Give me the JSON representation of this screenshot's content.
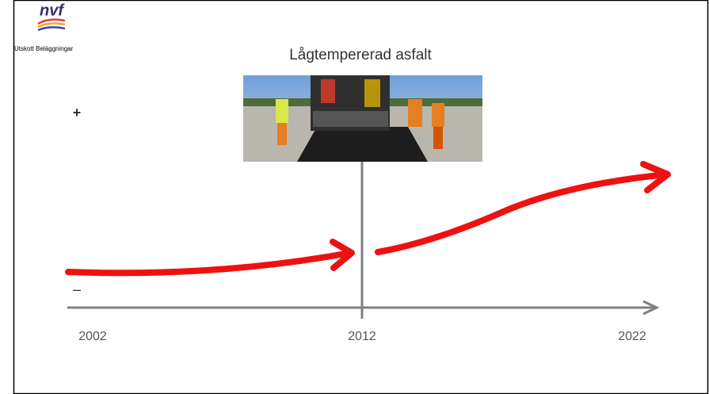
{
  "header": {
    "logo": "nvf",
    "committee": "Utskott Beläggningar",
    "title": "Lågtempererad asfalt"
  },
  "scale": {
    "top": "+",
    "bottom": "–"
  },
  "timeline": {
    "labels": [
      "2002",
      "2012",
      "2022"
    ]
  }
}
